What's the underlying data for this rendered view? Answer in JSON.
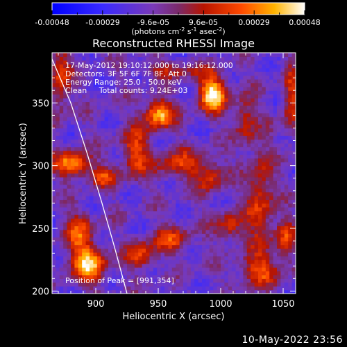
{
  "colorbar": {
    "ticks": [
      "-0.00048",
      "-0.00029",
      "-9.6e-05",
      "9.6e-05",
      "0.00029",
      "0.00048"
    ],
    "units_main": "(photons cm",
    "units_exp1": "-2",
    "units_mid": " s",
    "units_exp2": "-1",
    "units_end": " asec",
    "units_exp3": "-2",
    "units_close": ")"
  },
  "chart_data": {
    "type": "heatmap",
    "title": "Reconstructed RHESSI Image",
    "xlabel": "Heliocentric X (arcsec)",
    "ylabel": "Heliocentric Y (arcsec)",
    "xlim": [
      865,
      1060
    ],
    "ylim": [
      198,
      390
    ],
    "x_ticks": [
      900,
      950,
      1000,
      1050
    ],
    "y_ticks": [
      200,
      250,
      300,
      350
    ],
    "zlim": [
      -0.00048,
      0.00048
    ],
    "colormap": "blue-purple-red-orange-yellow-white",
    "limb": [
      [
        865,
        385
      ],
      [
        880,
        350
      ],
      [
        893,
        310
      ],
      [
        905,
        270
      ],
      [
        915,
        235
      ],
      [
        925,
        198
      ]
    ],
    "peak": [
      991,
      354
    ],
    "blobs": [
      {
        "x": 992,
        "y": 356,
        "sx": 8,
        "sy": 10,
        "a": 1.0
      },
      {
        "x": 949,
        "y": 340,
        "sx": 8,
        "sy": 8,
        "a": 0.9
      },
      {
        "x": 870,
        "y": 370,
        "sx": 6,
        "sy": 20,
        "a": 0.55
      },
      {
        "x": 880,
        "y": 300,
        "sx": 10,
        "sy": 7,
        "a": 0.8
      },
      {
        "x": 905,
        "y": 290,
        "sx": 8,
        "sy": 6,
        "a": 0.5
      },
      {
        "x": 930,
        "y": 310,
        "sx": 8,
        "sy": 14,
        "a": 0.55
      },
      {
        "x": 965,
        "y": 300,
        "sx": 14,
        "sy": 8,
        "a": 0.5
      },
      {
        "x": 990,
        "y": 290,
        "sx": 8,
        "sy": 10,
        "a": 0.45
      },
      {
        "x": 1018,
        "y": 335,
        "sx": 6,
        "sy": 14,
        "a": 0.45
      },
      {
        "x": 1030,
        "y": 270,
        "sx": 8,
        "sy": 30,
        "a": 0.5
      },
      {
        "x": 1050,
        "y": 240,
        "sx": 6,
        "sy": 12,
        "a": 0.5
      },
      {
        "x": 885,
        "y": 245,
        "sx": 8,
        "sy": 12,
        "a": 0.55
      },
      {
        "x": 893,
        "y": 220,
        "sx": 10,
        "sy": 10,
        "a": 0.85
      },
      {
        "x": 935,
        "y": 228,
        "sx": 8,
        "sy": 8,
        "a": 0.55
      },
      {
        "x": 960,
        "y": 240,
        "sx": 10,
        "sy": 8,
        "a": 0.5
      },
      {
        "x": 1005,
        "y": 250,
        "sx": 8,
        "sy": 8,
        "a": 0.5
      },
      {
        "x": 1030,
        "y": 215,
        "sx": 12,
        "sy": 8,
        "a": 0.5
      },
      {
        "x": 1055,
        "y": 350,
        "sx": 5,
        "sy": 20,
        "a": 0.5
      },
      {
        "x": 960,
        "y": 375,
        "sx": 20,
        "sy": 5,
        "a": 0.35
      }
    ]
  },
  "legend_lines": [
    "17-May-2012 19:10:12.000 to 19:16:12.000",
    "Detectors: 3F 5F 6F 7F 8F, Att 0",
    "Energy Range: 25.0 - 50.0 keV",
    "Clean     Total counts: 9.24E+03"
  ],
  "peak_label": "Position of Peak = [991,354]",
  "footer_date": "10-May-2022 23:56"
}
